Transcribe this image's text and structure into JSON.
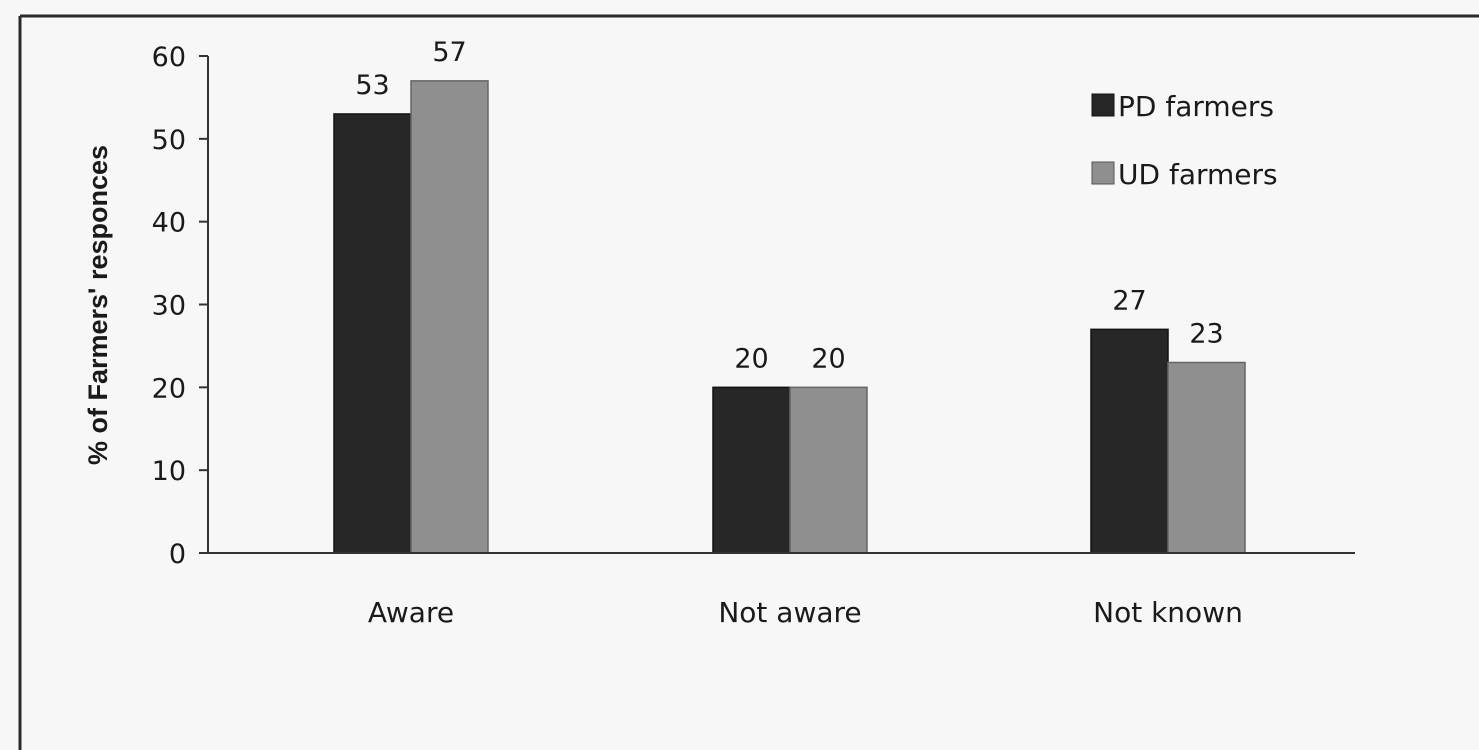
{
  "chart_data": {
    "type": "bar",
    "categories": [
      "Aware",
      "Not aware",
      "Not known"
    ],
    "series": [
      {
        "name": "PD farmers",
        "values": [
          53,
          20,
          27
        ],
        "color": "#272727"
      },
      {
        "name": "UD farmers",
        "values": [
          57,
          20,
          23
        ],
        "color": "#8f8f8f"
      }
    ],
    "data_labels": [
      [
        "53",
        "20",
        "27"
      ],
      [
        "57",
        "20",
        "23"
      ]
    ],
    "title": "",
    "xlabel": "",
    "ylabel": "% of Farmers' responces",
    "ylim": [
      0,
      60
    ],
    "yticks": [
      0,
      10,
      20,
      30,
      40,
      50,
      60
    ],
    "grid": false,
    "legend_position": "top-right"
  }
}
